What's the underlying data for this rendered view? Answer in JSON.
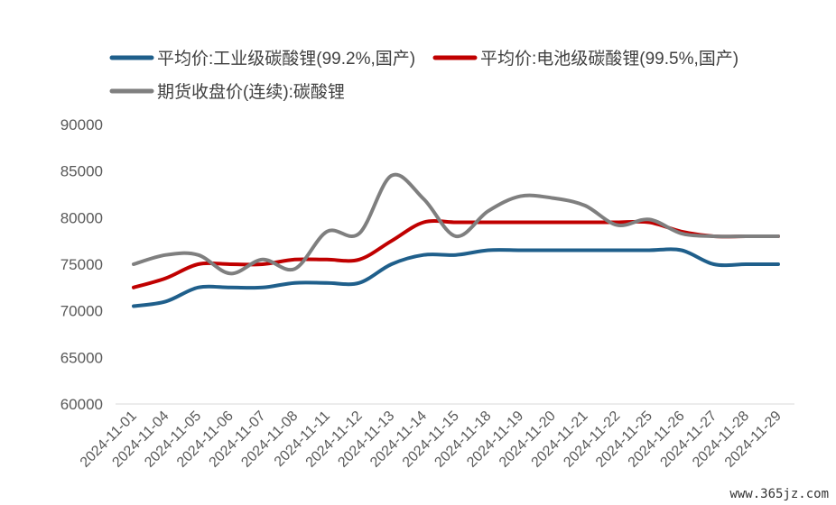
{
  "chart_data": {
    "type": "line",
    "title": "",
    "xlabel": "",
    "ylabel": "",
    "ylim": [
      60000,
      90000
    ],
    "yticks": [
      60000,
      65000,
      70000,
      75000,
      80000,
      85000,
      90000
    ],
    "grid": false,
    "legend_position": "top",
    "categories": [
      "2024-11-01",
      "2024-11-04",
      "2024-11-05",
      "2024-11-06",
      "2024-11-07",
      "2024-11-08",
      "2024-11-11",
      "2024-11-12",
      "2024-11-13",
      "2024-11-14",
      "2024-11-15",
      "2024-11-18",
      "2024-11-19",
      "2024-11-20",
      "2024-11-21",
      "2024-11-22",
      "2024-11-25",
      "2024-11-26",
      "2024-11-27",
      "2024-11-28",
      "2024-11-29"
    ],
    "series": [
      {
        "name": "平均价:工业级碳酸锂(99.2%,国产)",
        "color": "#1f5f8b",
        "values": [
          70500,
          71000,
          72500,
          72500,
          72500,
          73000,
          73000,
          73000,
          75000,
          76000,
          76000,
          76500,
          76500,
          76500,
          76500,
          76500,
          76500,
          76500,
          75000,
          75000,
          75000
        ]
      },
      {
        "name": "平均价:电池级碳酸锂(99.5%,国产)",
        "color": "#c00000",
        "values": [
          72500,
          73500,
          75000,
          75000,
          75000,
          75500,
          75500,
          75500,
          77500,
          79500,
          79500,
          79500,
          79500,
          79500,
          79500,
          79500,
          79500,
          78500,
          78000,
          78000,
          78000
        ]
      },
      {
        "name": "期货收盘价(连续):碳酸锂",
        "color": "#7f7f7f",
        "values": [
          75000,
          76000,
          76000,
          74000,
          75500,
          74500,
          78500,
          78300,
          84500,
          82000,
          78000,
          80700,
          82300,
          82100,
          81300,
          79200,
          79800,
          78300,
          78000,
          78000,
          78000
        ]
      }
    ]
  },
  "watermark": "www.365jz.com"
}
